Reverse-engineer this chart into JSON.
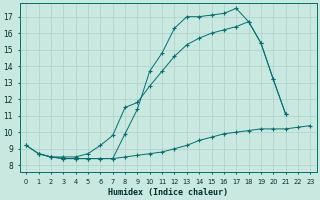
{
  "xlabel": "Humidex (Indice chaleur)",
  "bg_color": "#c8e8e0",
  "grid_color": "#b0cfca",
  "line_color": "#007070",
  "x_ticks": [
    0,
    1,
    2,
    3,
    4,
    5,
    6,
    7,
    8,
    9,
    10,
    11,
    12,
    13,
    14,
    15,
    16,
    17,
    18,
    19,
    20,
    21,
    22,
    23
  ],
  "y_ticks": [
    8,
    9,
    10,
    11,
    12,
    13,
    14,
    15,
    16,
    17
  ],
  "ylim": [
    7.6,
    17.8
  ],
  "xlim": [
    -0.5,
    23.5
  ],
  "series": [
    {
      "x": [
        0,
        1,
        2,
        3,
        4,
        5,
        6,
        7,
        8,
        9,
        10,
        11,
        12,
        13,
        14,
        15,
        16,
        17,
        18,
        19,
        20,
        21,
        22,
        23
      ],
      "y": [
        9.2,
        8.7,
        8.5,
        8.4,
        8.4,
        8.4,
        8.4,
        8.4,
        8.5,
        8.6,
        8.7,
        8.8,
        9.0,
        9.2,
        9.5,
        9.7,
        9.9,
        10.0,
        10.1,
        10.2,
        10.2,
        10.2,
        10.3,
        10.4
      ]
    },
    {
      "x": [
        0,
        1,
        2,
        3,
        4,
        5,
        6,
        7,
        8,
        9,
        10,
        11,
        12,
        13,
        14,
        15,
        16,
        17,
        18,
        19,
        20,
        21
      ],
      "y": [
        9.2,
        8.7,
        8.5,
        8.4,
        8.4,
        8.4,
        8.4,
        8.4,
        9.9,
        11.4,
        13.7,
        14.8,
        16.3,
        17.0,
        17.0,
        17.1,
        17.2,
        17.5,
        16.7,
        15.4,
        13.2,
        11.1
      ]
    },
    {
      "x": [
        1,
        2,
        3,
        4,
        5,
        6,
        7,
        8,
        9,
        10,
        11,
        12,
        13,
        14,
        15,
        16,
        17,
        18,
        19,
        20,
        21,
        22,
        23
      ],
      "y": [
        8.7,
        8.5,
        8.5,
        8.5,
        8.7,
        9.2,
        9.8,
        11.5,
        11.8,
        12.8,
        13.7,
        14.6,
        15.3,
        15.7,
        16.0,
        16.2,
        16.4,
        16.7,
        15.4,
        13.2,
        11.1,
        null,
        null
      ]
    }
  ]
}
